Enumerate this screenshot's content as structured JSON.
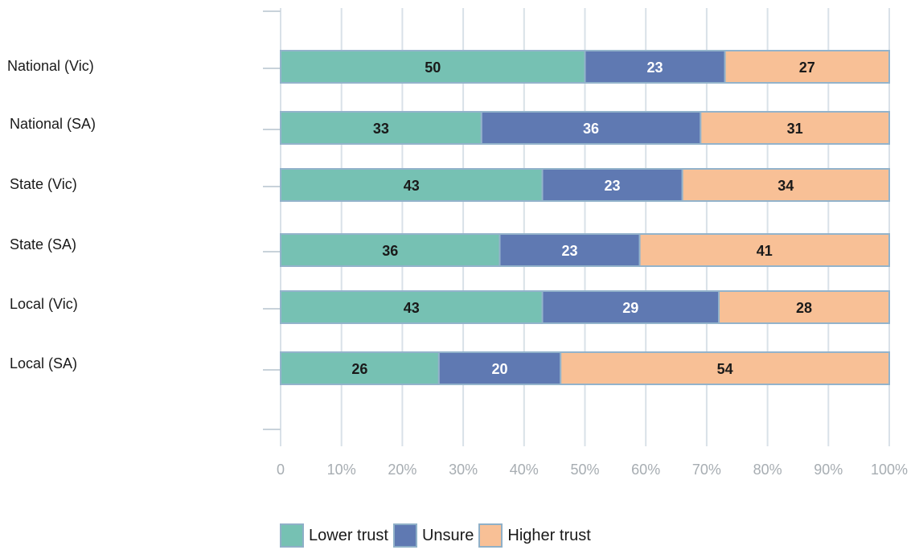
{
  "chart_data": {
    "type": "bar",
    "orientation": "horizontal",
    "stacked": true,
    "categories": [
      "National (Vic)",
      "National (SA)",
      "State (Vic)",
      "State (SA)",
      "Local (Vic)",
      "Local (SA)"
    ],
    "series": [
      {
        "name": "Lower trust",
        "values": [
          50,
          33,
          43,
          36,
          43,
          26
        ],
        "color": "#76c1b3",
        "label_color": "#1a1a1a"
      },
      {
        "name": "Unsure",
        "values": [
          23,
          36,
          23,
          23,
          29,
          20
        ],
        "color": "#5f79b2",
        "label_color": "#ffffff"
      },
      {
        "name": "Higher trust",
        "values": [
          27,
          31,
          34,
          41,
          28,
          54
        ],
        "color": "#f8c096",
        "label_color": "#1a1a1a"
      }
    ],
    "xlim": [
      0,
      100
    ],
    "xticks": [
      "0",
      "10%",
      "20%",
      "30%",
      "40%",
      "50%",
      "60%",
      "70%",
      "80%",
      "90%",
      "100%"
    ],
    "grid": true,
    "legend_position": "bottom",
    "title": "",
    "xlabel": "",
    "ylabel": ""
  }
}
